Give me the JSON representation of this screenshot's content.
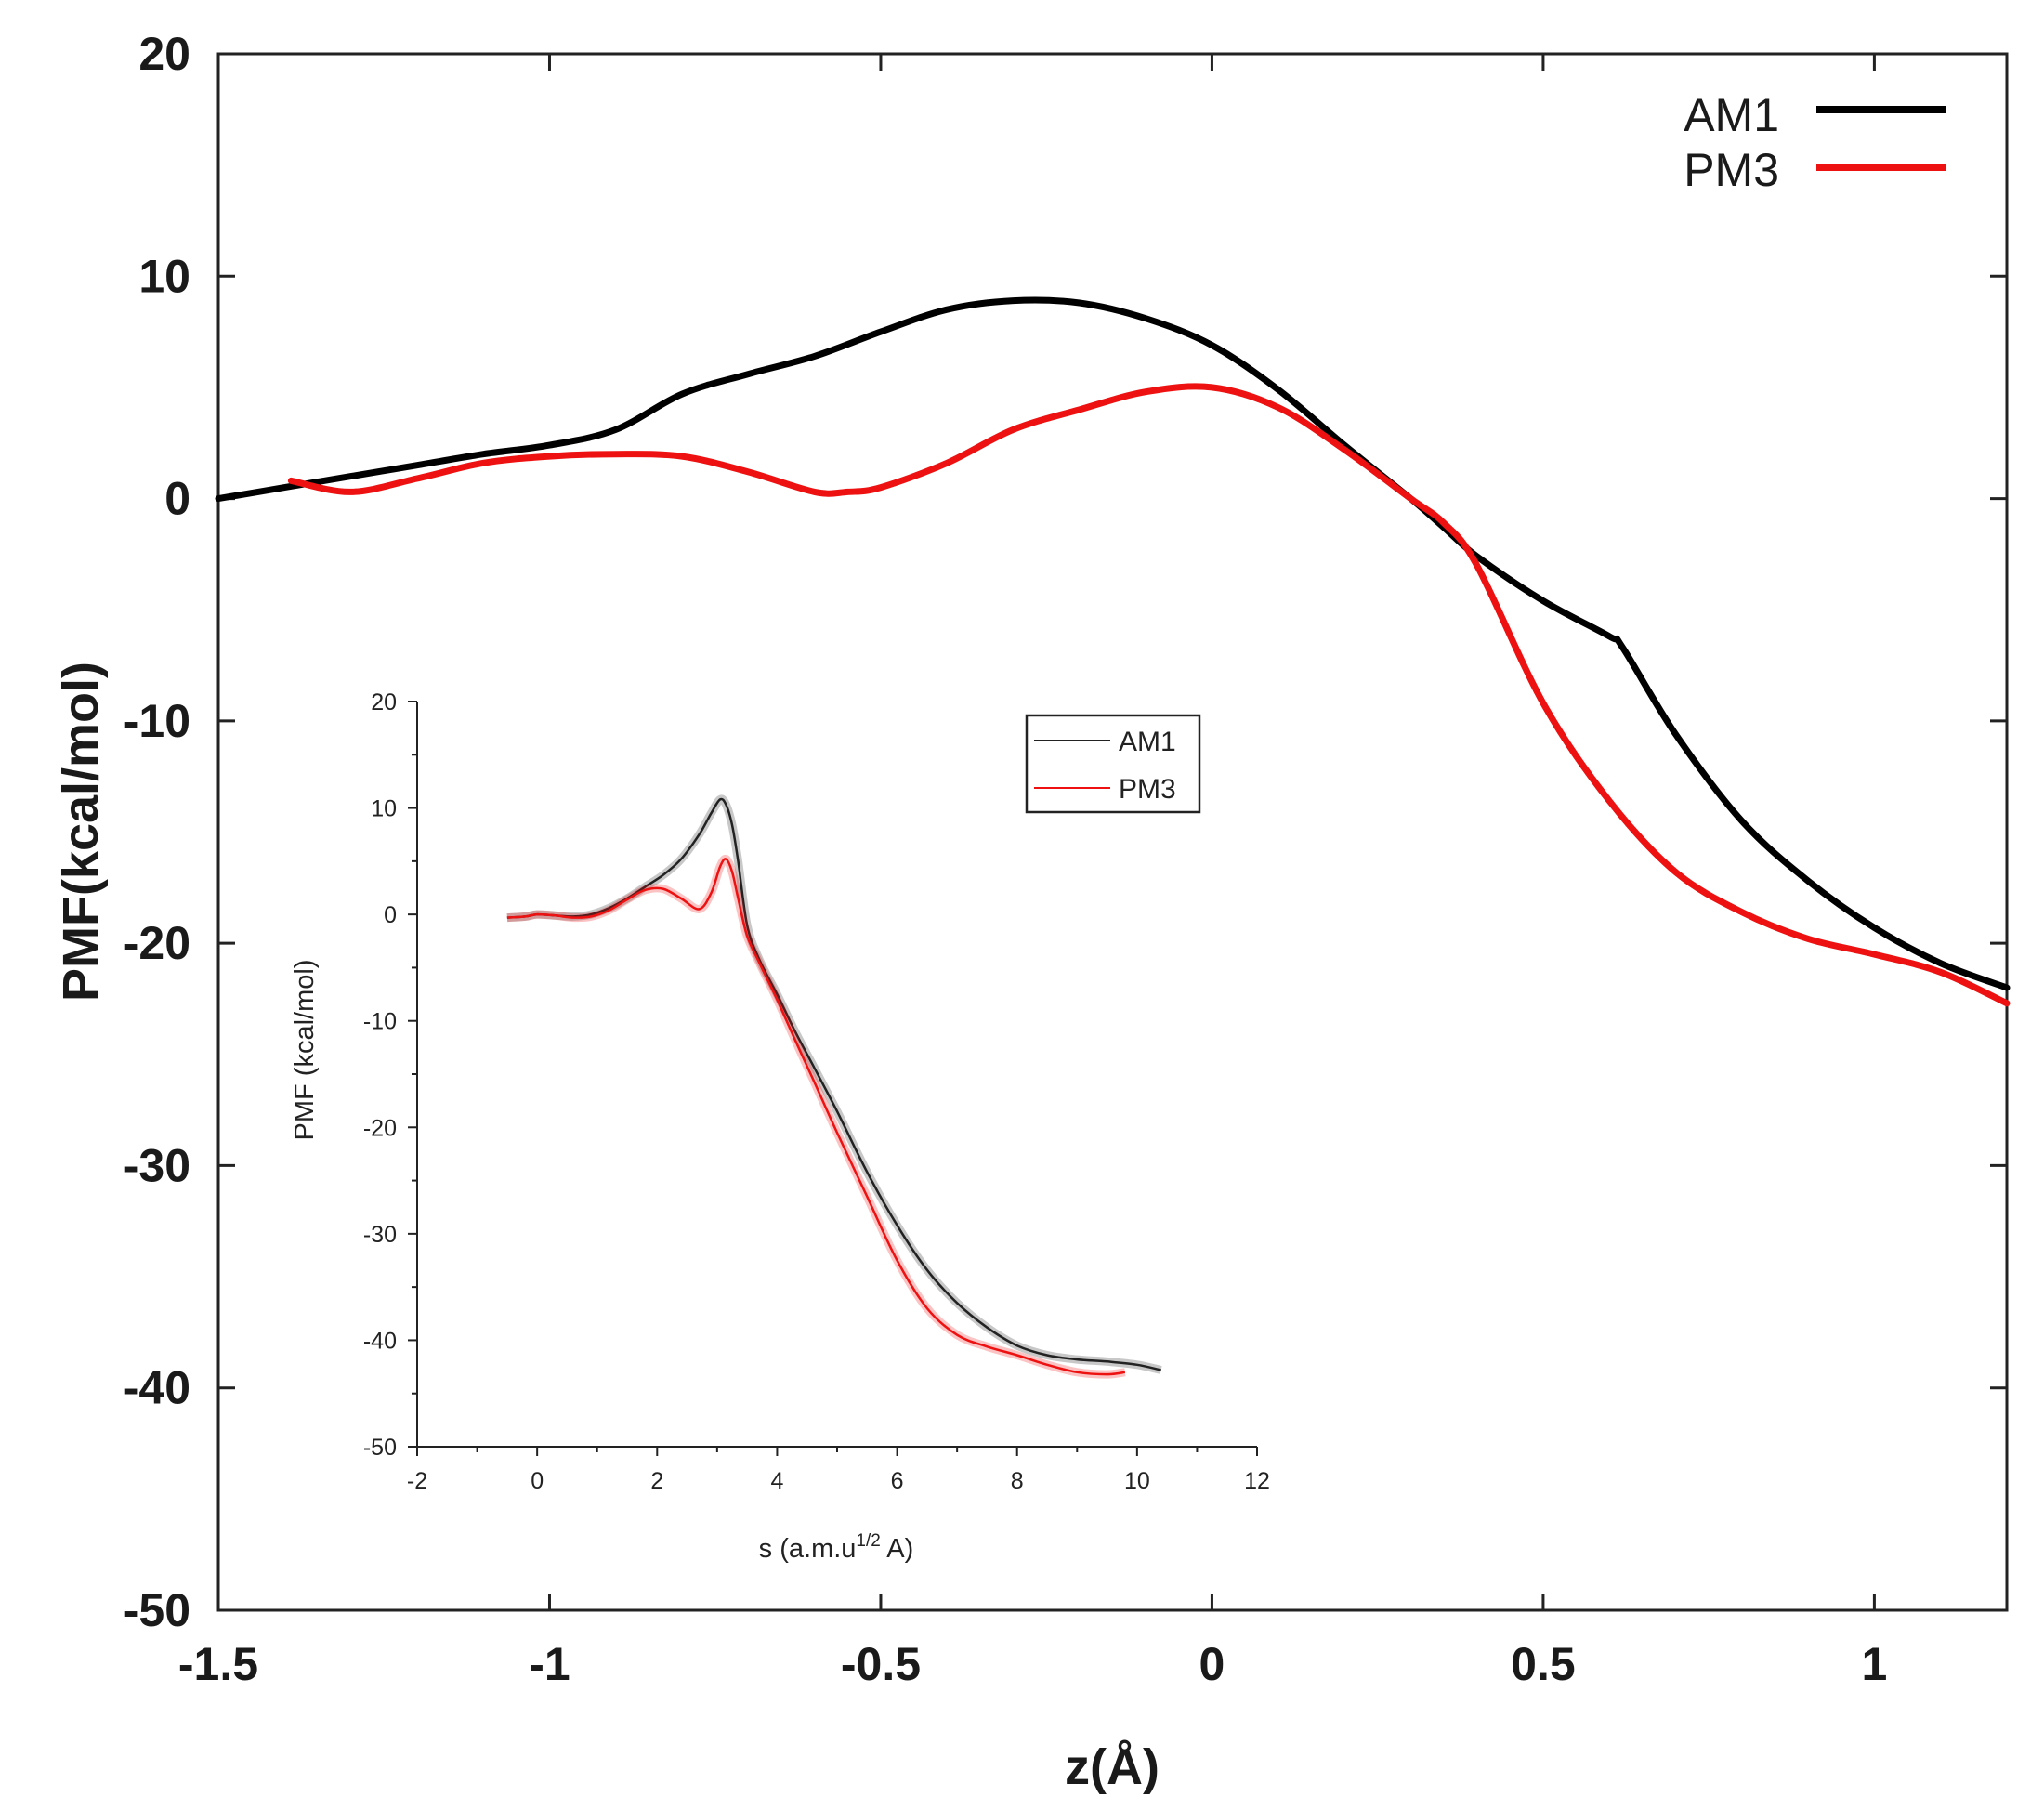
{
  "chart_data": [
    {
      "type": "line",
      "title": "",
      "xlabel": "z(Å)",
      "ylabel": "PMF(kcal/mol)",
      "xlim": [
        -1.5,
        1.2
      ],
      "ylim": [
        -50,
        20
      ],
      "xticks": [
        -1.5,
        -1,
        -0.5,
        0,
        0.5,
        1
      ],
      "xtick_labels": [
        "-1.5",
        "-1",
        "-0.5",
        "0",
        "0.5",
        "1"
      ],
      "yticks": [
        20,
        10,
        0,
        -10,
        -20,
        -30,
        -40,
        -50
      ],
      "ytick_labels": [
        "20",
        "10",
        "0",
        "-10",
        "-20",
        "-30",
        "-40",
        "-50"
      ],
      "legend_position": "top-right",
      "series": [
        {
          "name": "AM1",
          "color": "#000000",
          "x": [
            -1.5,
            -1.4,
            -1.3,
            -1.2,
            -1.1,
            -1.0,
            -0.9,
            -0.8,
            -0.7,
            -0.6,
            -0.5,
            -0.4,
            -0.3,
            -0.2,
            -0.1,
            0.0,
            0.1,
            0.2,
            0.3,
            0.35,
            0.4,
            0.5,
            0.6,
            0.62,
            0.7,
            0.8,
            0.9,
            1.0,
            1.1,
            1.2
          ],
          "y": [
            0.0,
            0.5,
            1.0,
            1.5,
            2.0,
            2.4,
            3.1,
            4.7,
            5.6,
            6.4,
            7.5,
            8.5,
            8.9,
            8.8,
            8.1,
            6.9,
            4.9,
            2.4,
            0.0,
            -1.3,
            -2.6,
            -4.6,
            -6.2,
            -6.7,
            -10.6,
            -14.5,
            -17.2,
            -19.3,
            -20.9,
            -22.0
          ]
        },
        {
          "name": "PM3",
          "color": "#ee1111",
          "x": [
            -1.39,
            -1.3,
            -1.2,
            -1.1,
            -1.0,
            -0.9,
            -0.8,
            -0.7,
            -0.6,
            -0.55,
            -0.5,
            -0.4,
            -0.3,
            -0.2,
            -0.1,
            0.0,
            0.1,
            0.2,
            0.3,
            0.35,
            0.4,
            0.5,
            0.6,
            0.7,
            0.8,
            0.9,
            1.0,
            1.1,
            1.2
          ],
          "y": [
            0.8,
            0.3,
            0.9,
            1.6,
            1.9,
            2.0,
            1.9,
            1.2,
            0.3,
            0.3,
            0.5,
            1.6,
            3.1,
            4.0,
            4.8,
            5.0,
            4.1,
            2.2,
            0.0,
            -1.1,
            -3.0,
            -9.2,
            -13.6,
            -16.8,
            -18.6,
            -19.8,
            -20.5,
            -21.3,
            -22.7
          ]
        }
      ]
    },
    {
      "type": "line",
      "title": "",
      "xlabel_main": "s (a.m.u",
      "xlabel_sup": "1/2",
      "xlabel_end": " A)",
      "ylabel": "PMF (kcal/mol)",
      "xlim": [
        -2,
        12
      ],
      "ylim": [
        -50,
        20
      ],
      "xticks": [
        -2,
        0,
        2,
        4,
        6,
        8,
        10,
        12
      ],
      "xtick_labels": [
        "-2",
        "0",
        "2",
        "4",
        "6",
        "8",
        "10",
        "12"
      ],
      "yticks": [
        20,
        10,
        0,
        -10,
        -20,
        -30,
        -40,
        -50
      ],
      "ytick_labels": [
        "20",
        "10",
        "0",
        "-10",
        "-20",
        "-30",
        "-40",
        "-50"
      ],
      "legend_position": "top-right",
      "series": [
        {
          "name": "AM1",
          "color": "#222222",
          "x": [
            -0.5,
            -0.2,
            0.0,
            0.3,
            0.6,
            0.9,
            1.2,
            1.5,
            1.8,
            2.1,
            2.4,
            2.7,
            2.9,
            3.05,
            3.15,
            3.25,
            3.35,
            3.5,
            3.7,
            4.0,
            4.3,
            4.6,
            5.0,
            5.5,
            6.0,
            6.5,
            7.0,
            7.5,
            8.0,
            8.5,
            9.0,
            9.5,
            10.0,
            10.4
          ],
          "y": [
            -0.3,
            -0.2,
            0.0,
            -0.1,
            -0.2,
            0.0,
            0.6,
            1.5,
            2.6,
            3.7,
            5.2,
            7.5,
            9.5,
            10.8,
            10.3,
            8.4,
            5.0,
            -1.0,
            -4.2,
            -7.5,
            -11.0,
            -14.2,
            -18.5,
            -24.2,
            -29.2,
            -33.4,
            -36.5,
            -38.8,
            -40.5,
            -41.4,
            -41.8,
            -42.0,
            -42.3,
            -42.8
          ]
        },
        {
          "name": "PM3",
          "color": "#ee1111",
          "x": [
            -0.5,
            -0.2,
            0.0,
            0.3,
            0.6,
            0.9,
            1.2,
            1.5,
            1.8,
            2.1,
            2.4,
            2.7,
            2.9,
            3.05,
            3.15,
            3.25,
            3.35,
            3.5,
            3.7,
            4.0,
            4.3,
            4.6,
            5.0,
            5.5,
            6.0,
            6.5,
            7.0,
            7.5,
            8.0,
            8.5,
            9.0,
            9.5,
            9.8
          ],
          "y": [
            -0.3,
            -0.2,
            0.0,
            -0.1,
            -0.3,
            -0.2,
            0.4,
            1.4,
            2.3,
            2.4,
            1.5,
            0.5,
            2.0,
            4.5,
            5.2,
            4.0,
            1.5,
            -2.0,
            -4.5,
            -8.0,
            -11.8,
            -15.5,
            -20.5,
            -26.5,
            -32.5,
            -37.0,
            -39.5,
            -40.6,
            -41.4,
            -42.3,
            -43.0,
            -43.2,
            -43.0
          ]
        }
      ]
    }
  ]
}
